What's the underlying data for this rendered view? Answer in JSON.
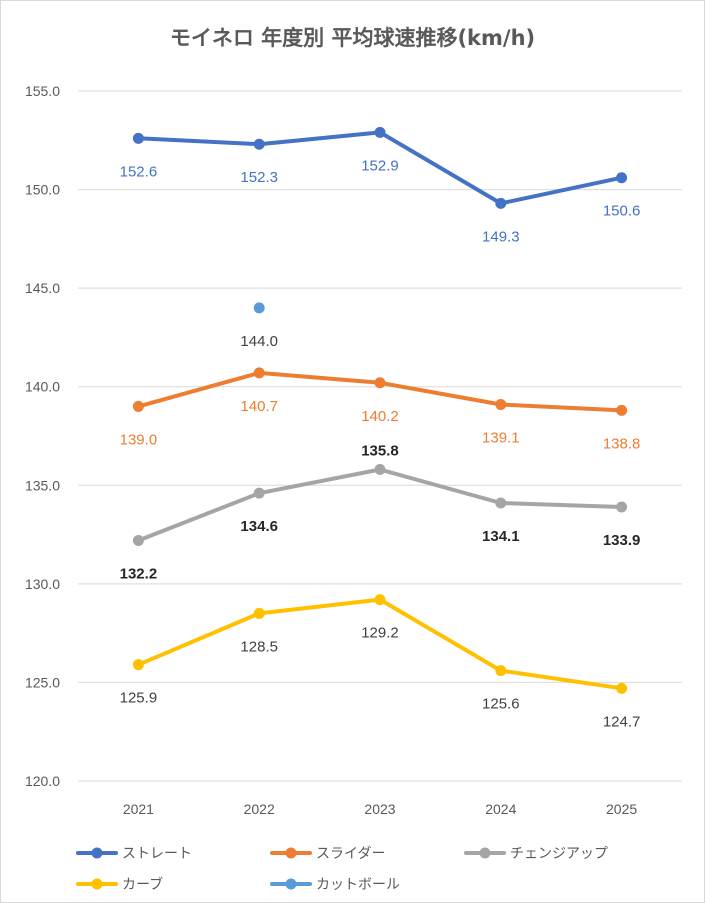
{
  "chart_data": {
    "type": "line",
    "title": "モイネロ 年度別 平均球速推移(km/h)",
    "categories": [
      "2021",
      "2022",
      "2023",
      "2024",
      "2025"
    ],
    "ylim": [
      120,
      155
    ],
    "yticks": [
      "120.0",
      "125.0",
      "130.0",
      "135.0",
      "140.0",
      "145.0",
      "150.0",
      "155.0"
    ],
    "grid": true,
    "legend_position": "bottom",
    "series": [
      {
        "name": "ストレート",
        "color": "#4472c4",
        "label_color": "#4472c4",
        "label_pos": "below",
        "values": [
          152.6,
          152.3,
          152.9,
          149.3,
          150.6
        ],
        "labels": [
          "152.6",
          "152.3",
          "152.9",
          "149.3",
          "150.6"
        ]
      },
      {
        "name": "スライダー",
        "color": "#ed7d31",
        "label_color": "#ed7d31",
        "label_pos": "below",
        "values": [
          139.0,
          140.7,
          140.2,
          139.1,
          138.8
        ],
        "labels": [
          "139.0",
          "140.7",
          "140.2",
          "139.1",
          "138.8"
        ]
      },
      {
        "name": "チェンジアップ",
        "color": "#a5a5a5",
        "label_color": "#262626",
        "label_pos": "mixed",
        "values": [
          132.2,
          134.6,
          135.8,
          134.1,
          133.9
        ],
        "labels": [
          "132.2",
          "134.6",
          "135.8",
          "134.1",
          "133.9"
        ]
      },
      {
        "name": "カーブ",
        "color": "#ffc000",
        "label_color": "#404040",
        "label_pos": "below",
        "values": [
          125.9,
          128.5,
          129.2,
          125.6,
          124.7
        ],
        "labels": [
          "125.9",
          "128.5",
          "129.2",
          "125.6",
          "124.7"
        ]
      },
      {
        "name": "カットボール",
        "color": "#5b9bd5",
        "label_color": "#404040",
        "label_pos": "below",
        "values": [
          null,
          144.0,
          null,
          null,
          null
        ],
        "labels": [
          null,
          "144.0",
          null,
          null,
          null
        ]
      }
    ]
  }
}
